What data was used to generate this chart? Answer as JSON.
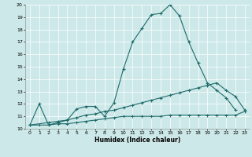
{
  "xlabel": "Humidex (Indice chaleur)",
  "xlim": [
    -0.5,
    23.5
  ],
  "ylim": [
    10,
    20
  ],
  "yticks": [
    10,
    11,
    12,
    13,
    14,
    15,
    16,
    17,
    18,
    19,
    20
  ],
  "xticks": [
    0,
    1,
    2,
    3,
    4,
    5,
    6,
    7,
    8,
    9,
    10,
    11,
    12,
    13,
    14,
    15,
    16,
    17,
    18,
    19,
    20,
    21,
    22,
    23
  ],
  "bg_color": "#cde8e8",
  "line_color": "#1e6b6b",
  "line1_x": [
    0,
    1,
    2,
    3,
    4,
    5,
    6,
    7,
    8,
    9,
    10,
    11,
    12,
    13,
    14,
    15,
    16,
    17,
    18,
    19,
    20,
    21,
    22
  ],
  "line1_y": [
    10.3,
    12.0,
    10.3,
    10.5,
    10.7,
    11.6,
    11.8,
    11.8,
    11.0,
    12.1,
    14.8,
    17.0,
    18.1,
    19.2,
    19.3,
    20.0,
    19.1,
    17.0,
    15.3,
    13.7,
    13.1,
    12.5,
    11.5
  ],
  "line2_x": [
    0,
    2,
    3,
    4,
    5,
    6,
    7,
    8,
    9,
    10,
    11,
    12,
    13,
    14,
    15,
    16,
    17,
    18,
    19,
    20,
    21,
    22,
    23
  ],
  "line2_y": [
    10.3,
    10.5,
    10.6,
    10.7,
    10.9,
    11.1,
    11.2,
    11.4,
    11.5,
    11.7,
    11.9,
    12.1,
    12.3,
    12.5,
    12.7,
    12.9,
    13.1,
    13.3,
    13.5,
    13.7,
    13.1,
    12.6,
    11.5
  ],
  "line3_x": [
    0,
    1,
    2,
    3,
    4,
    5,
    6,
    7,
    8,
    9,
    10,
    11,
    12,
    13,
    14,
    15,
    16,
    17,
    18,
    19,
    20,
    21,
    22,
    23
  ],
  "line3_y": [
    10.3,
    10.3,
    10.3,
    10.4,
    10.4,
    10.5,
    10.6,
    10.7,
    10.8,
    10.9,
    11.0,
    11.0,
    11.0,
    11.0,
    11.0,
    11.1,
    11.1,
    11.1,
    11.1,
    11.1,
    11.1,
    11.1,
    11.1,
    11.4
  ]
}
